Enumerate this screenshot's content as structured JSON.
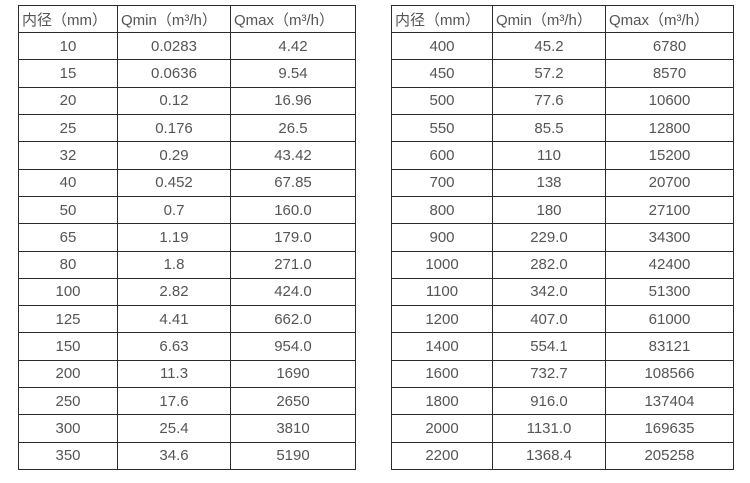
{
  "page": {
    "background": "#ffffff",
    "text_color": "#555555",
    "border_color": "#2b2b2b"
  },
  "tables": [
    {
      "name": "small-diameters",
      "headers": [
        "内径（mm）",
        "Qmin（m³/h）",
        "Qmax（m³/h）"
      ],
      "rows": [
        [
          "10",
          "0.0283",
          "4.42"
        ],
        [
          "15",
          "0.0636",
          "9.54"
        ],
        [
          "20",
          "0.12",
          "16.96"
        ],
        [
          "25",
          "0.176",
          "26.5"
        ],
        [
          "32",
          "0.29",
          "43.42"
        ],
        [
          "40",
          "0.452",
          "67.85"
        ],
        [
          "50",
          "0.7",
          "160.0"
        ],
        [
          "65",
          "1.19",
          "179.0"
        ],
        [
          "80",
          "1.8",
          "271.0"
        ],
        [
          "100",
          "2.82",
          "424.0"
        ],
        [
          "125",
          "4.41",
          "662.0"
        ],
        [
          "150",
          "6.63",
          "954.0"
        ],
        [
          "200",
          "11.3",
          "1690"
        ],
        [
          "250",
          "17.6",
          "2650"
        ],
        [
          "300",
          "25.4",
          "3810"
        ],
        [
          "350",
          "34.6",
          "5190"
        ]
      ]
    },
    {
      "name": "large-diameters",
      "headers": [
        "内径（mm）",
        "Qmin（m³/h）",
        "Qmax（m³/h）"
      ],
      "rows": [
        [
          "400",
          "45.2",
          "6780"
        ],
        [
          "450",
          "57.2",
          "8570"
        ],
        [
          "500",
          "77.6",
          "10600"
        ],
        [
          "550",
          "85.5",
          "12800"
        ],
        [
          "600",
          "110",
          "15200"
        ],
        [
          "700",
          "138",
          "20700"
        ],
        [
          "800",
          "180",
          "27100"
        ],
        [
          "900",
          "229.0",
          "34300"
        ],
        [
          "1000",
          "282.0",
          "42400"
        ],
        [
          "1100",
          "342.0",
          "51300"
        ],
        [
          "1200",
          "407.0",
          "61000"
        ],
        [
          "1400",
          "554.1",
          "83121"
        ],
        [
          "1600",
          "732.7",
          "108566"
        ],
        [
          "1800",
          "916.0",
          "137404"
        ],
        [
          "2000",
          "1131.0",
          "169635"
        ],
        [
          "2200",
          "1368.4",
          "205258"
        ]
      ]
    }
  ]
}
